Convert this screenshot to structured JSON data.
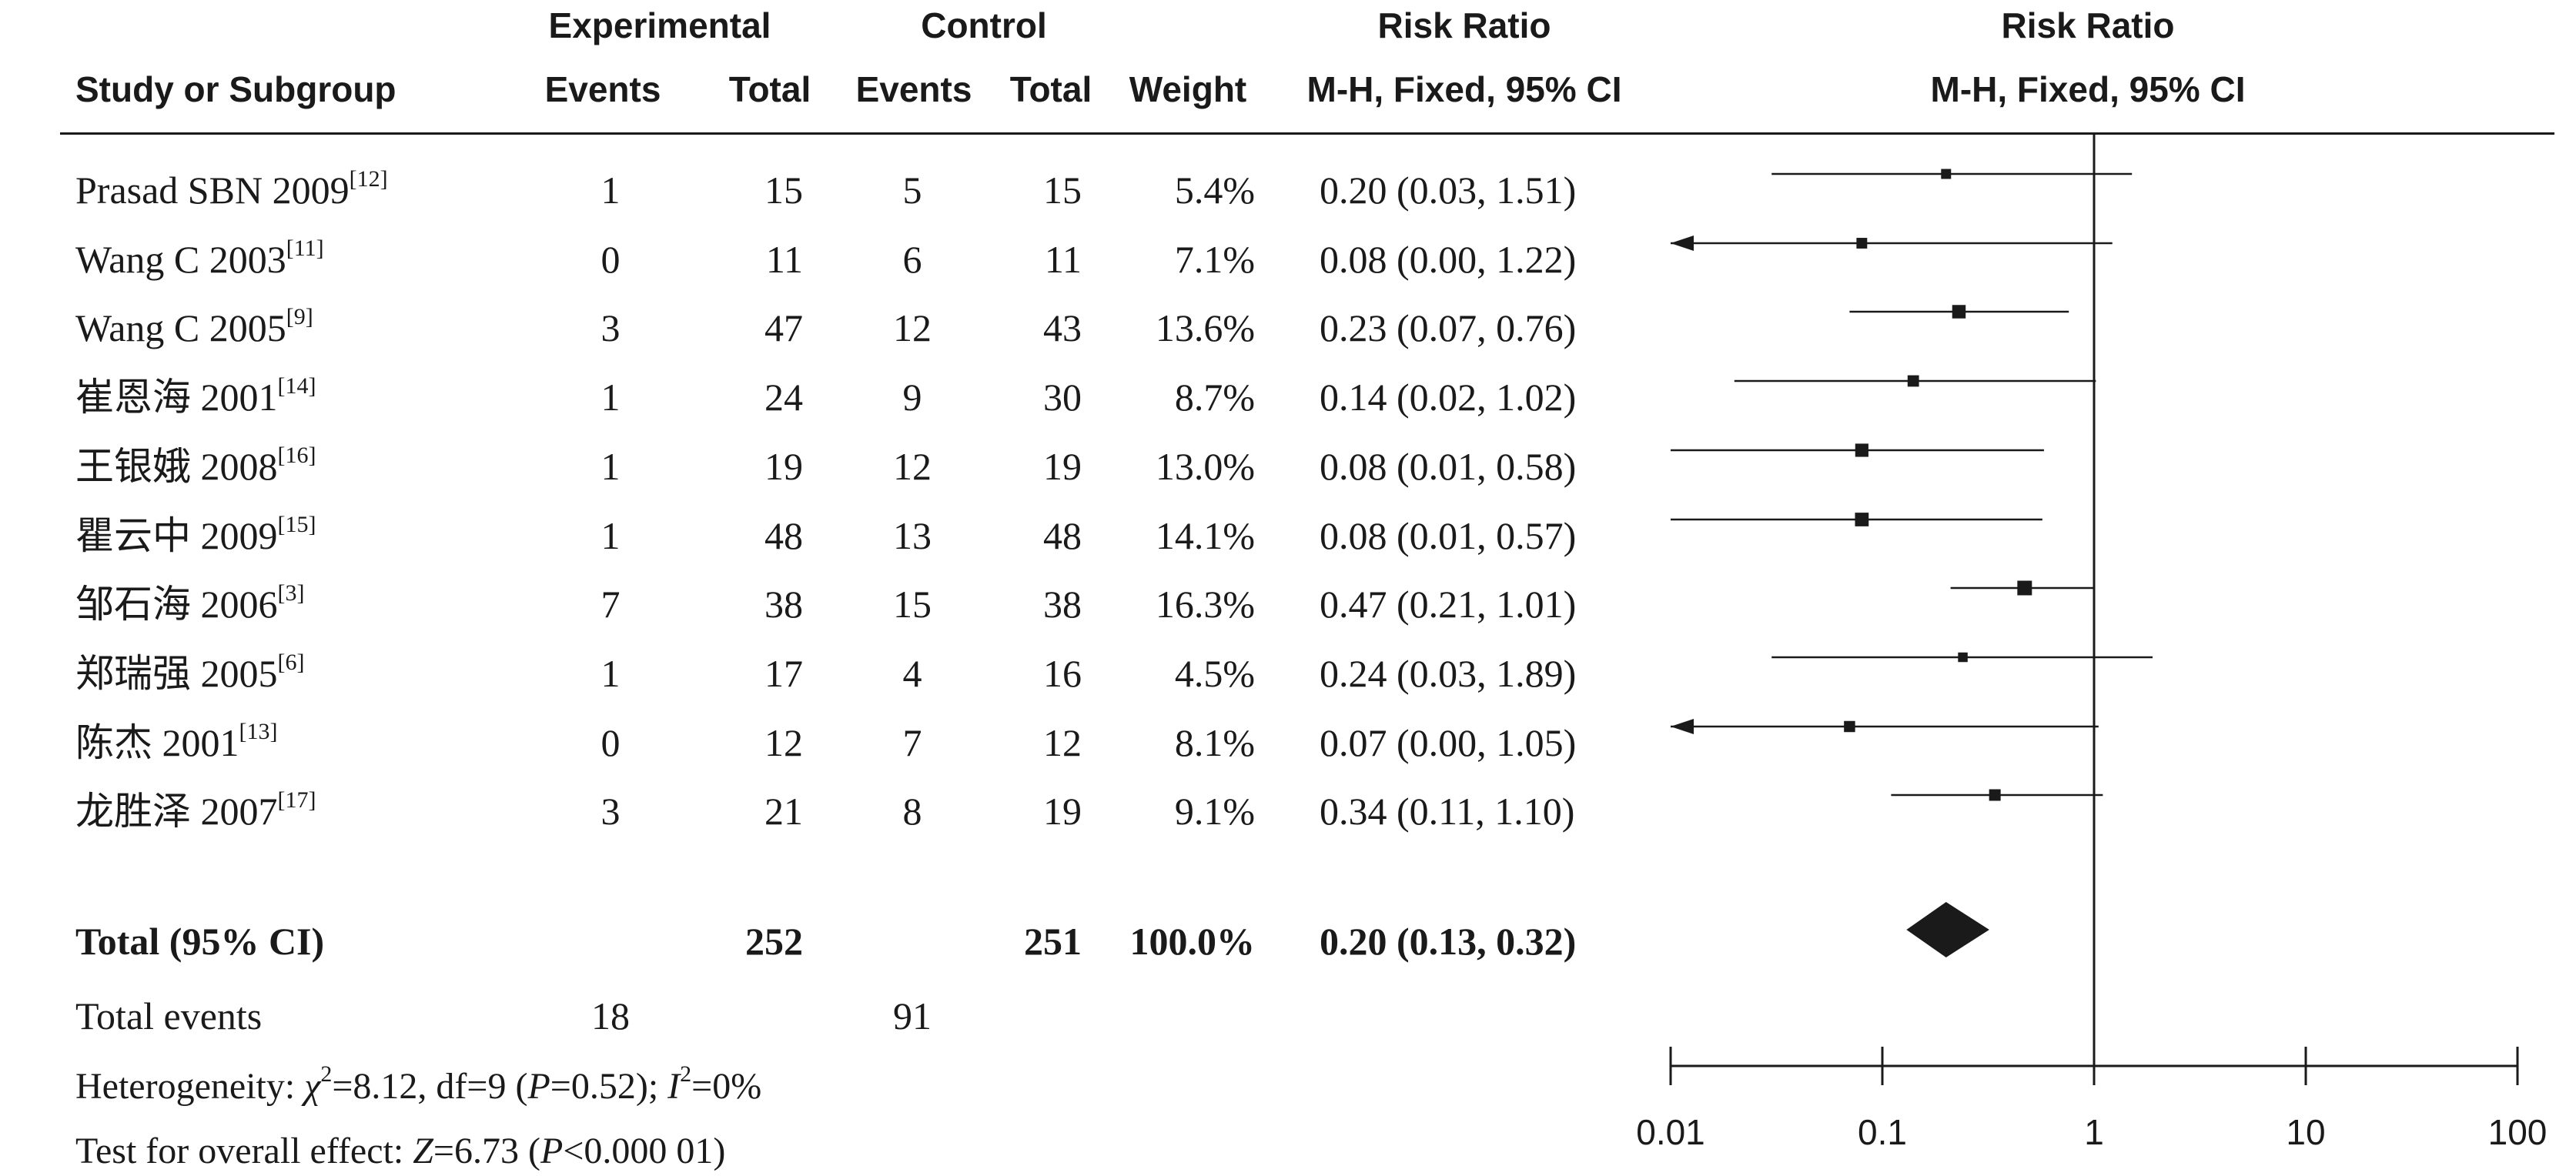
{
  "header": {
    "group1": "Experimental",
    "group2": "Control",
    "rr_col": "Risk Ratio",
    "rr_plot": "Risk Ratio",
    "study": "Study or Subgroup",
    "events1": "Events",
    "total1": "Total",
    "events2": "Events",
    "total2": "Total",
    "weight": "Weight",
    "method_col": "M-H, Fixed, 95% CI",
    "method_plot": "M-H, Fixed, 95% CI"
  },
  "studies": [
    {
      "name": "Prasad SBN 2009",
      "ref": "[12]",
      "e1": "1",
      "t1": "15",
      "e2": "5",
      "t2": "15",
      "weight": "5.4%",
      "ci": "0.20 (0.03, 1.51)"
    },
    {
      "name": "Wang C 2003",
      "ref": "[11]",
      "e1": "0",
      "t1": "11",
      "e2": "6",
      "t2": "11",
      "weight": "7.1%",
      "ci": "0.08 (0.00, 1.22)"
    },
    {
      "name": "Wang C 2005",
      "ref": "[9]",
      "e1": "3",
      "t1": "47",
      "e2": "12",
      "t2": "43",
      "weight": "13.6%",
      "ci": "0.23 (0.07, 0.76)"
    },
    {
      "name": "崔恩海 2001",
      "ref": "[14]",
      "e1": "1",
      "t1": "24",
      "e2": "9",
      "t2": "30",
      "weight": "8.7%",
      "ci": "0.14 (0.02, 1.02)"
    },
    {
      "name": "王银娥 2008",
      "ref": "[16]",
      "e1": "1",
      "t1": "19",
      "e2": "12",
      "t2": "19",
      "weight": "13.0%",
      "ci": "0.08 (0.01, 0.58)"
    },
    {
      "name": "瞿云中 2009",
      "ref": "[15]",
      "e1": "1",
      "t1": "48",
      "e2": "13",
      "t2": "48",
      "weight": "14.1%",
      "ci": "0.08 (0.01, 0.57)"
    },
    {
      "name": "邹石海 2006",
      "ref": "[3]",
      "e1": "7",
      "t1": "38",
      "e2": "15",
      "t2": "38",
      "weight": "16.3%",
      "ci": "0.47 (0.21, 1.01)"
    },
    {
      "name": "郑瑞强 2005",
      "ref": "[6]",
      "e1": "1",
      "t1": "17",
      "e2": "4",
      "t2": "16",
      "weight": "4.5%",
      "ci": "0.24 (0.03, 1.89)"
    },
    {
      "name": "陈杰 2001",
      "ref": "[13]",
      "e1": "0",
      "t1": "12",
      "e2": "7",
      "t2": "12",
      "weight": "8.1%",
      "ci": "0.07 (0.00, 1.05)"
    },
    {
      "name": "龙胜泽 2007",
      "ref": "[17]",
      "e1": "3",
      "t1": "21",
      "e2": "8",
      "t2": "19",
      "weight": "9.1%",
      "ci": "0.34 (0.11, 1.10)"
    }
  ],
  "total": {
    "label": "Total (95% CI)",
    "t1": "252",
    "t2": "251",
    "weight": "100.0%",
    "ci": "0.20 (0.13, 0.32)"
  },
  "events": {
    "label": "Total events",
    "e1": "18",
    "e2": "91"
  },
  "heterogeneity": {
    "prefix": "Heterogeneity: ",
    "chi": "χ",
    "chi_sup": "2",
    "chi_val": "=8.12, df=9 (",
    "p": "P",
    "p_val": "=0.52); ",
    "i": "I",
    "i_sup": "2",
    "i_val": "=0%"
  },
  "overall": {
    "prefix": "Test for overall effect: ",
    "z": "Z",
    "z_val": "=6.73 (",
    "p": "P",
    "p_val": "<0.000 01)"
  },
  "chart_data": {
    "type": "forest",
    "title": "Risk Ratio",
    "subtitle": "M-H, Fixed, 95% CI",
    "x_scale": "log",
    "xlim": [
      0.01,
      100
    ],
    "x_ticks": [
      "0.01",
      "0.1",
      "1",
      "10",
      "100"
    ],
    "null_line": 1,
    "studies": [
      {
        "name": "Prasad SBN 2009",
        "rr": 0.2,
        "lower": 0.03,
        "upper": 1.51,
        "weight": 5.4
      },
      {
        "name": "Wang C 2003",
        "rr": 0.08,
        "lower": 0.0,
        "upper": 1.22,
        "weight": 7.1
      },
      {
        "name": "Wang C 2005",
        "rr": 0.23,
        "lower": 0.07,
        "upper": 0.76,
        "weight": 13.6
      },
      {
        "name": "崔恩海 2001",
        "rr": 0.14,
        "lower": 0.02,
        "upper": 1.02,
        "weight": 8.7
      },
      {
        "name": "王银娥 2008",
        "rr": 0.08,
        "lower": 0.01,
        "upper": 0.58,
        "weight": 13.0
      },
      {
        "name": "瞿云中 2009",
        "rr": 0.08,
        "lower": 0.01,
        "upper": 0.57,
        "weight": 14.1
      },
      {
        "name": "邹石海 2006",
        "rr": 0.47,
        "lower": 0.21,
        "upper": 1.01,
        "weight": 16.3
      },
      {
        "name": "郑瑞强 2005",
        "rr": 0.24,
        "lower": 0.03,
        "upper": 1.89,
        "weight": 4.5
      },
      {
        "name": "陈杰 2001",
        "rr": 0.07,
        "lower": 0.0,
        "upper": 1.05,
        "weight": 8.1
      },
      {
        "name": "龙胜泽 2007",
        "rr": 0.34,
        "lower": 0.11,
        "upper": 1.1,
        "weight": 9.1
      }
    ],
    "pooled": {
      "rr": 0.2,
      "lower": 0.13,
      "upper": 0.32
    }
  }
}
